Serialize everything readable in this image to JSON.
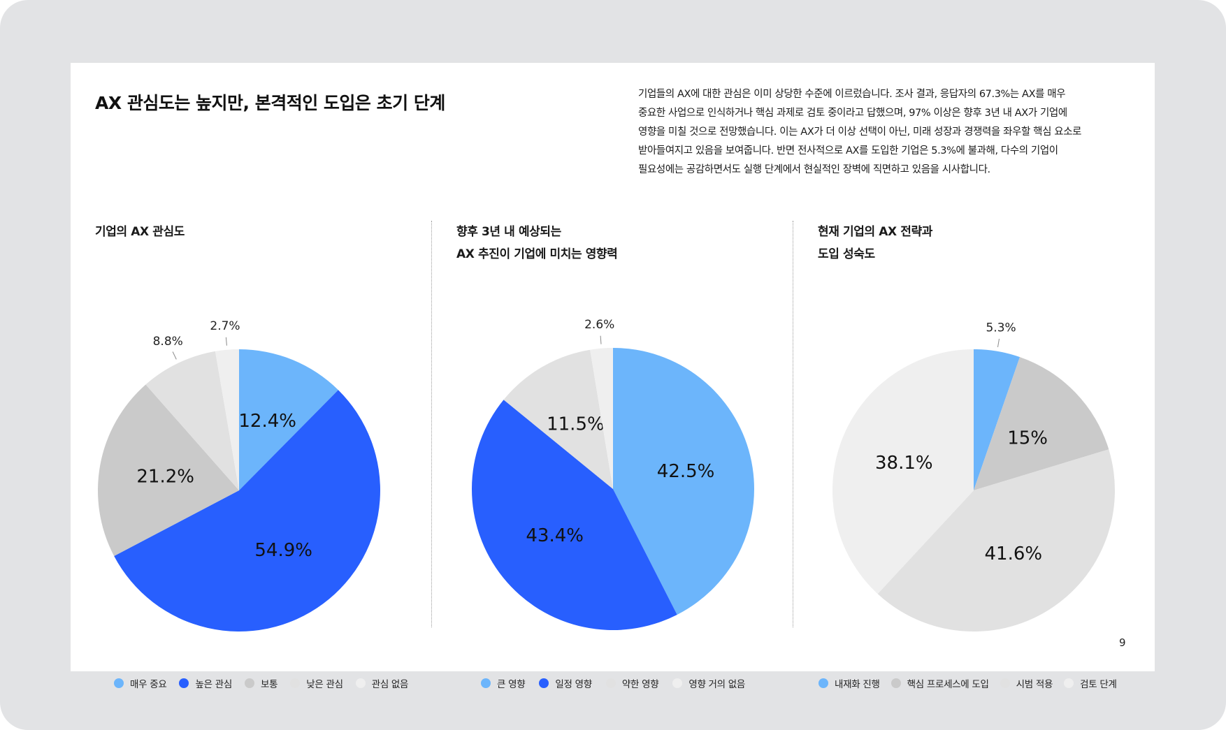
{
  "headline": "AX 관심도는 높지만, 본격적인 도입은 초기 단계",
  "description": [
    "기업들의 AX에 대한 관심은 이미 상당한 수준에 이르렀습니다. 조사 결과, 응답자의 67.3%는 AX를 매우",
    "중요한 사업으로 인식하거나 핵심 과제로 검토 중이라고 답했으며, 97% 이상은 향후 3년 내 AX가 기업에",
    "영향을 미칠 것으로 전망했습니다. 이는 AX가 더 이상 선택이 아닌, 미래 성장과 경쟁력을 좌우할 핵심 요소로",
    "받아들여지고 있음을 보여줍니다. 반면 전사적으로 AX를 도입한 기업은 5.3%에 불과해, 다수의 기업이",
    "필요성에는 공감하면서도 실행 단계에서 현실적인 장벽에 직면하고 있음을 시사합니다."
  ],
  "page_number": "9",
  "colors": {
    "blue_light": "#6cb5fb",
    "blue_strong": "#285ffe",
    "gray_mid": "#cacaca",
    "gray_light": "#e1e1e1",
    "gray_lightest": "#efefef"
  },
  "chart_data": [
    {
      "type": "pie",
      "title_lines": [
        "기업의 AX 관심도"
      ],
      "legend_position": "bottom",
      "slices": [
        {
          "label": "매우 중요",
          "value": 12.4,
          "display": "12.4%",
          "color": "#6cb5fb",
          "label_style": "inside"
        },
        {
          "label": "높은 관심",
          "value": 54.9,
          "display": "54.9%",
          "color": "#285ffe",
          "label_style": "inside"
        },
        {
          "label": "보통",
          "value": 21.2,
          "display": "21.2%",
          "color": "#cacaca",
          "label_style": "inside"
        },
        {
          "label": "낮은 관심",
          "value": 8.8,
          "display": "8.8%",
          "color": "#e1e1e1",
          "label_style": "outside"
        },
        {
          "label": "관심 없음",
          "value": 2.7,
          "display": "2.7%",
          "color": "#efefef",
          "label_style": "outside"
        }
      ]
    },
    {
      "type": "pie",
      "title_lines": [
        "향후 3년 내 예상되는",
        "AX 추진이 기업에 미치는 영향력"
      ],
      "legend_position": "bottom",
      "slices": [
        {
          "label": "큰 영향",
          "value": 42.5,
          "display": "42.5%",
          "color": "#6cb5fb",
          "label_style": "inside"
        },
        {
          "label": "일정 영향",
          "value": 43.4,
          "display": "43.4%",
          "color": "#285ffe",
          "label_style": "inside"
        },
        {
          "label": "약한 영향",
          "value": 11.5,
          "display": "11.5%",
          "color": "#e1e1e1",
          "label_style": "inside"
        },
        {
          "label": "영향 거의 없음",
          "value": 2.6,
          "display": "2.6%",
          "color": "#efefef",
          "label_style": "outside"
        }
      ]
    },
    {
      "type": "pie",
      "title_lines": [
        "현재 기업의 AX 전략과",
        "도입 성숙도"
      ],
      "legend_position": "bottom",
      "slices": [
        {
          "label": "내재화 진행",
          "value": 5.3,
          "display": "5.3%",
          "color": "#6cb5fb",
          "label_style": "outside"
        },
        {
          "label": "핵심 프로세스에 도입",
          "value": 15,
          "display": "15%",
          "color": "#cacaca",
          "label_style": "inside"
        },
        {
          "label": "시범 적용",
          "value": 41.6,
          "display": "41.6%",
          "color": "#e1e1e1",
          "label_style": "inside"
        },
        {
          "label": "검토 단계",
          "value": 38.1,
          "display": "38.1%",
          "color": "#efefef",
          "label_style": "inside"
        }
      ]
    }
  ]
}
